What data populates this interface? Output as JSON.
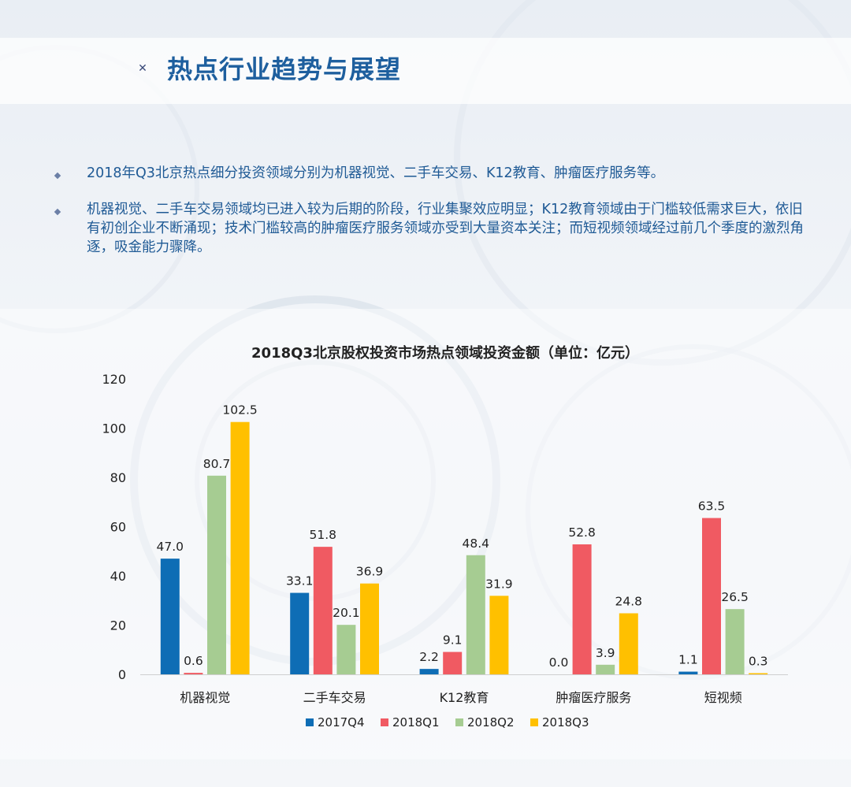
{
  "page": {
    "title": "热点行业趋势与展望",
    "bullets": [
      "2018年Q3北京热点细分投资领域分别为机器视觉、二手车交易、K12教育、肿瘤医疗服务等。",
      "机器视觉、二手车交易领域均已进入较为后期的阶段，行业集聚效应明显；K12教育领域由于门槛较低需求巨大，依旧有初创企业不断涌现；技术门槛较高的肿瘤医疗服务领域亦受到大量资本关注；而短视频领域经过前几个季度的激烈角逐，吸金能力骤降。"
    ]
  },
  "colors": {
    "title": "#1e5f9e",
    "body_text": "#1f5a95",
    "s2017Q4": "#0e6db5",
    "s2018Q1": "#f05a62",
    "s2018Q2": "#a6cc92",
    "s2018Q3": "#ffc000"
  },
  "chart_data": {
    "type": "bar",
    "title": "2018Q3北京股权投资市场热点领域投资金额（单位：亿元）",
    "categories": [
      "机器视觉",
      "二手车交易",
      "K12教育",
      "肿瘤医疗服务",
      "短视频"
    ],
    "series": [
      {
        "name": "2017Q4",
        "values": [
          47.0,
          33.1,
          2.2,
          0.0,
          1.1
        ],
        "labels": [
          "47.0",
          "33.1",
          "2.2",
          "0.0",
          "1.1"
        ],
        "color": "#0e6db5"
      },
      {
        "name": "2018Q1",
        "values": [
          0.6,
          51.8,
          9.1,
          52.8,
          63.5
        ],
        "labels": [
          "0.6",
          "51.8",
          "9.1",
          "52.8",
          "63.5"
        ],
        "color": "#f05a62"
      },
      {
        "name": "2018Q2",
        "values": [
          80.7,
          20.1,
          48.4,
          3.9,
          26.5
        ],
        "labels": [
          "80.7",
          "20.1",
          "48.4",
          "3.9",
          "26.5"
        ],
        "color": "#a6cc92"
      },
      {
        "name": "2018Q3",
        "values": [
          102.5,
          36.9,
          31.9,
          24.8,
          0.3
        ],
        "labels": [
          "102.5",
          "36.9",
          "31.9",
          "24.8",
          "0.3"
        ],
        "color": "#ffc000"
      }
    ],
    "yticks": [
      "0",
      "20",
      "40",
      "60",
      "80",
      "100",
      "120"
    ],
    "ylim": [
      0,
      120
    ],
    "grid": false,
    "legend_position": "bottom"
  }
}
